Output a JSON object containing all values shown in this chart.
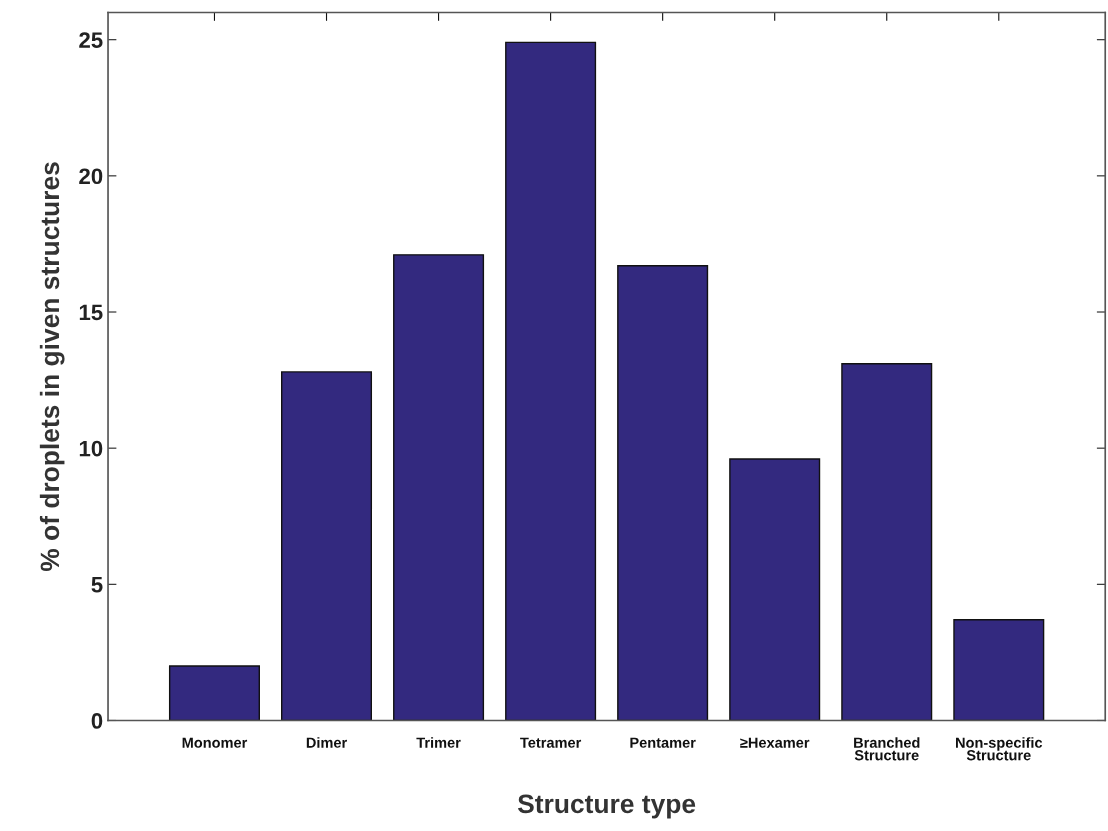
{
  "chart_data": {
    "type": "bar",
    "xlabel": "Structure type",
    "ylabel": "% of droplets in given structures",
    "categories": [
      "Monomer",
      "Dimer",
      "Trimer",
      "Tetramer",
      "Pentamer",
      "≥Hexamer",
      "Branched\nStructure",
      "Non-specific\nStructure"
    ],
    "series": [
      {
        "color": "#33297f",
        "values": [
          2.0,
          12.8,
          17.1,
          24.9,
          16.7,
          9.6,
          13.1,
          3.7
        ]
      }
    ],
    "ylim": [
      0,
      26
    ],
    "yticks": [
      0,
      5,
      10,
      15,
      20,
      25
    ],
    "grid": false,
    "legend": false
  }
}
